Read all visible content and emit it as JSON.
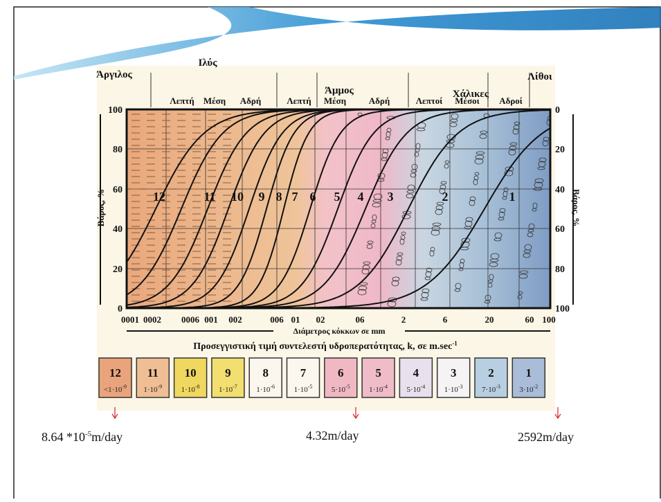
{
  "diagram": {
    "groups": [
      {
        "label": "Άργιλος"
      },
      {
        "label": "Ιλύς",
        "subs": [
          "Λεπτή",
          "Μέση",
          "Αδρή"
        ]
      },
      {
        "label": "Άμμος",
        "subs": [
          "Λεπτή",
          "Μέση",
          "Αδρή"
        ]
      },
      {
        "label": "Χάλικες",
        "subs": [
          "Λεπτοί",
          "Μέσοι",
          "Αδροί"
        ]
      },
      {
        "label": "Λίθοι"
      }
    ],
    "left_axis": {
      "label": "Βάρος, %",
      "ticks": [
        "100",
        "80",
        "60",
        "40",
        "20",
        "0"
      ]
    },
    "right_axis": {
      "label": "Βάρος, %",
      "ticks": [
        "0",
        "20",
        "40",
        "60",
        "80",
        "100"
      ]
    },
    "x_ticks": [
      "0001",
      "0002",
      "0006",
      "001",
      "002",
      "006",
      "01",
      "02",
      "06",
      "2",
      "6",
      "20",
      "60",
      "100"
    ],
    "x_label": "Διάμετρος κόκκων σε mm",
    "zones": [
      "12",
      "11",
      "10",
      "9",
      "8",
      "7",
      "6",
      "5",
      "4",
      "3",
      "2",
      "1"
    ]
  },
  "legend": {
    "title": "Προσεγγιστική τιμή συντελεστή υδροπερατότητας, k, σε m.sec",
    "title_sup": "-1",
    "boxes": [
      {
        "number": "12",
        "k": "<1·10",
        "exp": "-9"
      },
      {
        "number": "11",
        "k": "1·10",
        "exp": "-9"
      },
      {
        "number": "10",
        "k": "1·10",
        "exp": "-8"
      },
      {
        "number": "9",
        "k": "1·10",
        "exp": "-7"
      },
      {
        "number": "8",
        "k": "1·10",
        "exp": "-6"
      },
      {
        "number": "7",
        "k": "1·10",
        "exp": "-5"
      },
      {
        "number": "6",
        "k": "5·10",
        "exp": "-5"
      },
      {
        "number": "5",
        "k": "1·10",
        "exp": "-4"
      },
      {
        "number": "4",
        "k": "5·10",
        "exp": "-4"
      },
      {
        "number": "3",
        "k": "1·10",
        "exp": "-3"
      },
      {
        "number": "2",
        "k": "7·10",
        "exp": "-3"
      },
      {
        "number": "1",
        "k": "3·10",
        "exp": "-2"
      }
    ]
  },
  "annotations": [
    {
      "before": "8.64 *10",
      "sup": "-5",
      "after": "m/day"
    },
    {
      "text": "4.32m/day"
    },
    {
      "text": "2592m/day"
    }
  ]
}
